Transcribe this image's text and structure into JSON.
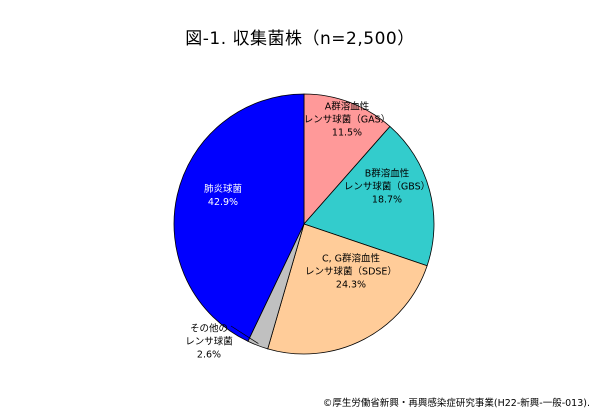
{
  "chart_data": {
    "type": "pie",
    "title": "図-1. 収集菌株（n=2,500）",
    "start_angle_deg": 0,
    "direction": "clockwise",
    "slices": [
      {
        "label_lines": [
          "A群溶血性",
          "レンサ球菌（GAS）"
        ],
        "value": 11.5,
        "value_label": "11.5%",
        "color": "#FF9999",
        "label_color": "#000000"
      },
      {
        "label_lines": [
          "B群溶血性",
          "レンサ球菌（GBS）"
        ],
        "value": 18.7,
        "value_label": "18.7%",
        "color": "#33CCCC",
        "label_color": "#000000"
      },
      {
        "label_lines": [
          "C, G群溶血性",
          "レンサ球菌（SDSE）"
        ],
        "value": 24.3,
        "value_label": "24.3%",
        "color": "#FFCC99",
        "label_color": "#000000"
      },
      {
        "label_lines": [
          "その他の",
          "レンサ球菌"
        ],
        "value": 2.6,
        "value_label": "2.6%",
        "color": "#C0C0C0",
        "label_color": "#000000"
      },
      {
        "label_lines": [
          "肺炎球菌"
        ],
        "value": 42.9,
        "value_label": "42.9%",
        "color": "#0000FF",
        "label_color": "#FFFFFF"
      }
    ]
  },
  "footer": {
    "credit": "©厚生労働省新興・再興感染症研究事業(H22-新興-一般-013)."
  }
}
